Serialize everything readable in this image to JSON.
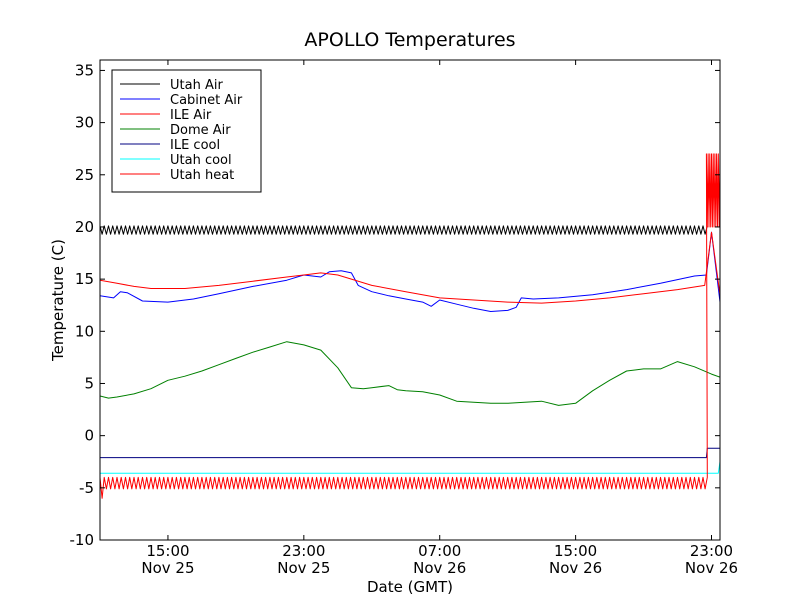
{
  "chart_data": {
    "type": "line",
    "title": "APOLLO Temperatures",
    "xlabel": "Date (GMT)",
    "ylabel": "Temperature (C)",
    "x_unit": "hours since Nov 25 00:00 GMT",
    "xlim": [
      11.0,
      47.5
    ],
    "ylim": [
      -10,
      36
    ],
    "yticks": [
      -10,
      -5,
      0,
      5,
      10,
      15,
      20,
      25,
      30,
      35
    ],
    "yticklabels": [
      "-10",
      "-5",
      "0",
      "5",
      "10",
      "15",
      "20",
      "25",
      "30",
      "35"
    ],
    "xticks": [
      {
        "x": 15,
        "time": "15:00",
        "date": "Nov 25"
      },
      {
        "x": 23,
        "time": "23:00",
        "date": "Nov 25"
      },
      {
        "x": 31,
        "time": "07:00",
        "date": "Nov 26"
      },
      {
        "x": 39,
        "time": "15:00",
        "date": "Nov 26"
      },
      {
        "x": 47,
        "time": "23:00",
        "date": "Nov 26"
      }
    ],
    "legend_position": "top-left",
    "series": [
      {
        "name": "Utah Air",
        "color": "#000000",
        "style": "oscillating",
        "x": [
          11.0,
          46.8
        ],
        "y": [
          19.7,
          19.7
        ],
        "amplitude": 0.4,
        "period_hours": 0.25
      },
      {
        "name": "Cabinet Air",
        "color": "#0000ff",
        "style": "line",
        "x": [
          11.0,
          11.8,
          12.2,
          12.6,
          13.5,
          15.0,
          16.5,
          18.0,
          20.0,
          22.0,
          23.0,
          24.0,
          24.5,
          25.2,
          25.8,
          26.2,
          27.0,
          28.0,
          29.0,
          30.0,
          30.5,
          31.0,
          32.0,
          33.0,
          34.0,
          35.0,
          35.5,
          35.8,
          36.5,
          38.0,
          40.0,
          42.0,
          44.0,
          46.0,
          46.7,
          47.0,
          47.5
        ],
        "y": [
          13.4,
          13.2,
          13.8,
          13.7,
          12.9,
          12.8,
          13.1,
          13.6,
          14.3,
          14.9,
          15.4,
          15.2,
          15.7,
          15.8,
          15.6,
          14.4,
          13.8,
          13.4,
          13.1,
          12.8,
          12.4,
          13.0,
          12.6,
          12.2,
          11.9,
          12.0,
          12.3,
          13.2,
          13.1,
          13.2,
          13.5,
          14.0,
          14.6,
          15.3,
          15.4,
          19.5,
          12.8
        ]
      },
      {
        "name": "ILE Air",
        "color": "#ff0000",
        "style": "line",
        "x": [
          11.0,
          12.0,
          13.0,
          14.0,
          16.0,
          18.0,
          20.0,
          22.0,
          23.0,
          24.0,
          25.0,
          25.8,
          27.0,
          29.0,
          31.0,
          33.0,
          35.0,
          37.0,
          39.0,
          41.0,
          43.0,
          45.0,
          46.6,
          47.0,
          47.5
        ],
        "y": [
          14.9,
          14.6,
          14.3,
          14.1,
          14.1,
          14.4,
          14.8,
          15.2,
          15.4,
          15.6,
          15.4,
          15.0,
          14.4,
          13.8,
          13.2,
          13.0,
          12.8,
          12.7,
          12.9,
          13.2,
          13.6,
          14.0,
          14.4,
          19.5,
          13.5
        ]
      },
      {
        "name": "Dome Air",
        "color": "#008000",
        "style": "line",
        "x": [
          11.0,
          11.5,
          12.0,
          13.0,
          14.0,
          15.0,
          16.0,
          17.0,
          18.0,
          19.0,
          20.0,
          21.0,
          22.0,
          23.0,
          24.0,
          25.0,
          25.8,
          26.5,
          27.0,
          28.0,
          28.5,
          29.0,
          30.0,
          31.0,
          32.0,
          33.0,
          34.0,
          35.0,
          36.0,
          37.0,
          38.0,
          39.0,
          40.0,
          41.0,
          42.0,
          43.0,
          44.0,
          45.0,
          46.0,
          47.0,
          47.5
        ],
        "y": [
          3.8,
          3.6,
          3.7,
          4.0,
          4.5,
          5.3,
          5.7,
          6.2,
          6.8,
          7.4,
          8.0,
          8.5,
          9.0,
          8.7,
          8.2,
          6.5,
          4.6,
          4.5,
          4.6,
          4.8,
          4.4,
          4.3,
          4.2,
          3.9,
          3.3,
          3.2,
          3.1,
          3.1,
          3.2,
          3.3,
          2.9,
          3.1,
          4.3,
          5.3,
          6.2,
          6.4,
          6.4,
          7.1,
          6.6,
          5.9,
          5.6
        ]
      },
      {
        "name": "ILE cool",
        "color": "#000080",
        "style": "line",
        "x": [
          11.0,
          46.7,
          46.75,
          47.5
        ],
        "y": [
          -2.1,
          -2.1,
          -1.2,
          -1.2
        ]
      },
      {
        "name": "Utah cool",
        "color": "#00ffff",
        "style": "line",
        "x": [
          11.0,
          47.4,
          47.5
        ],
        "y": [
          -3.6,
          -3.6,
          -2.5
        ]
      },
      {
        "name": "Utah heat",
        "color": "#ff0000",
        "style": "oscillating",
        "x": [
          11.0,
          46.8
        ],
        "y": [
          -4.55,
          -4.55
        ],
        "amplitude": 0.55,
        "period_hours": 0.25,
        "extra_min": -6.0,
        "burst": {
          "x": [
            46.7,
            47.5
          ],
          "low": 20.0,
          "high": 27.0
        }
      }
    ]
  }
}
